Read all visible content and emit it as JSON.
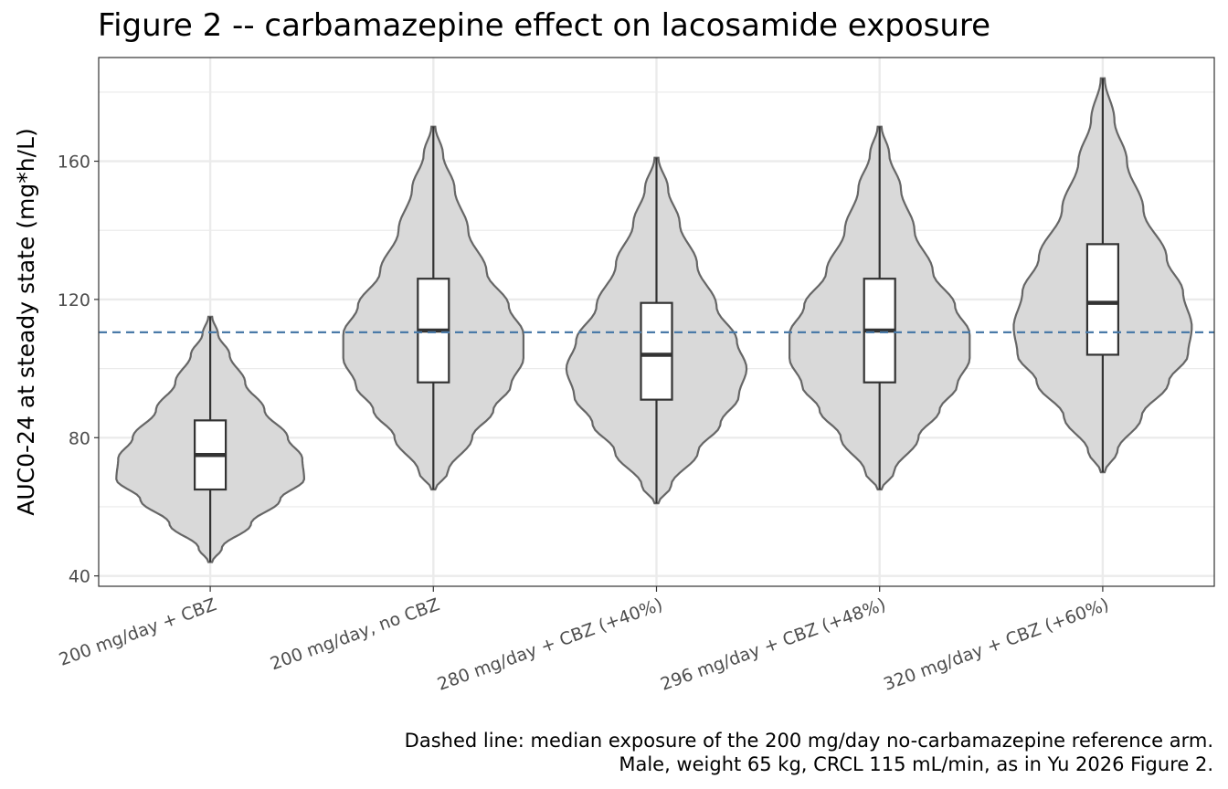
{
  "chart_data": {
    "type": "violin",
    "title": "Figure 2 -- carbamazepine effect on lacosamide exposure",
    "xlabel": "",
    "ylabel": "AUC0-24 at steady state (mg*h/L)",
    "ylim": [
      37,
      190
    ],
    "yticks": [
      40,
      80,
      120,
      160
    ],
    "grid": true,
    "categories": [
      "200 mg/day + CBZ",
      "200 mg/day, no CBZ",
      "280 mg/day + CBZ (+40%)",
      "296 mg/day + CBZ (+48%)",
      "320 mg/day + CBZ (+60%)"
    ],
    "box": [
      {
        "min": 44,
        "q1": 65,
        "median": 75,
        "q3": 85,
        "max": 115
      },
      {
        "min": 65,
        "q1": 96,
        "median": 111,
        "q3": 126,
        "max": 170
      },
      {
        "min": 61,
        "q1": 91,
        "median": 104,
        "q3": 119,
        "max": 161
      },
      {
        "min": 65,
        "q1": 96,
        "median": 111,
        "q3": 126,
        "max": 170
      },
      {
        "min": 70,
        "q1": 104,
        "median": 119,
        "q3": 136,
        "max": 184
      }
    ],
    "density": [
      [
        [
          44,
          0.02
        ],
        [
          48,
          0.12
        ],
        [
          55,
          0.42
        ],
        [
          62,
          0.72
        ],
        [
          68,
          0.97
        ],
        [
          74,
          0.95
        ],
        [
          80,
          0.8
        ],
        [
          88,
          0.56
        ],
        [
          96,
          0.36
        ],
        [
          104,
          0.2
        ],
        [
          110,
          0.08
        ],
        [
          115,
          0.02
        ]
      ],
      [
        [
          65,
          0.02
        ],
        [
          70,
          0.15
        ],
        [
          80,
          0.4
        ],
        [
          88,
          0.62
        ],
        [
          95,
          0.8
        ],
        [
          103,
          0.93
        ],
        [
          110,
          0.93
        ],
        [
          118,
          0.78
        ],
        [
          128,
          0.55
        ],
        [
          140,
          0.36
        ],
        [
          152,
          0.22
        ],
        [
          162,
          0.1
        ],
        [
          170,
          0.02
        ]
      ],
      [
        [
          61,
          0.02
        ],
        [
          66,
          0.15
        ],
        [
          76,
          0.43
        ],
        [
          84,
          0.66
        ],
        [
          92,
          0.85
        ],
        [
          100,
          0.93
        ],
        [
          108,
          0.83
        ],
        [
          118,
          0.62
        ],
        [
          130,
          0.42
        ],
        [
          142,
          0.24
        ],
        [
          152,
          0.12
        ],
        [
          161,
          0.02
        ]
      ],
      [
        [
          65,
          0.02
        ],
        [
          70,
          0.15
        ],
        [
          80,
          0.4
        ],
        [
          88,
          0.62
        ],
        [
          95,
          0.8
        ],
        [
          103,
          0.93
        ],
        [
          110,
          0.93
        ],
        [
          118,
          0.78
        ],
        [
          128,
          0.55
        ],
        [
          140,
          0.36
        ],
        [
          152,
          0.22
        ],
        [
          162,
          0.1
        ],
        [
          170,
          0.02
        ]
      ],
      [
        [
          70,
          0.02
        ],
        [
          76,
          0.15
        ],
        [
          86,
          0.4
        ],
        [
          96,
          0.68
        ],
        [
          104,
          0.88
        ],
        [
          112,
          0.92
        ],
        [
          122,
          0.83
        ],
        [
          132,
          0.66
        ],
        [
          146,
          0.42
        ],
        [
          160,
          0.25
        ],
        [
          172,
          0.12
        ],
        [
          184,
          0.02
        ]
      ]
    ],
    "reference_line": {
      "y": 110.5,
      "style": "dashed",
      "color": "#4a7aa8"
    },
    "violin_fill": "#d9d9d9",
    "violin_stroke": "#666666",
    "box_fill": "#ffffff",
    "box_stroke": "#333333",
    "grid_color": "#ebebeb",
    "caption": [
      "Dashed line: median exposure of the 200 mg/day no-carbamazepine reference arm.",
      "Male, weight 65 kg, CRCL 115 mL/min, as in Yu 2026 Figure 2."
    ]
  }
}
